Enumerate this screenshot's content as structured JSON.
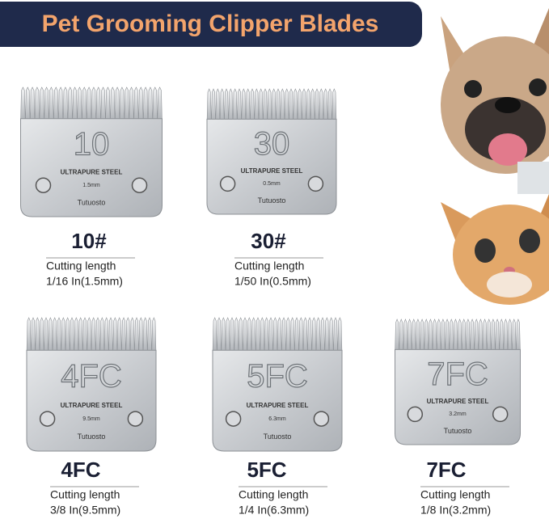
{
  "header": {
    "title": "Pet Grooming Clipper Blades"
  },
  "blades": [
    {
      "engraving": "10",
      "steel": "ULTRAPURE STEEL",
      "size": "1.5mm",
      "brand": "Tutuosto",
      "name": "10#",
      "caption": "Cutting length",
      "length": "1/16 In(1.5mm)"
    },
    {
      "engraving": "30",
      "steel": "ULTRAPURE STEEL",
      "size": "0.5mm",
      "brand": "Tutuosto",
      "name": "30#",
      "caption": "Cutting length",
      "length": "1/50 In(0.5mm)"
    },
    {
      "engraving": "4FC",
      "steel": "ULTRAPURE STEEL",
      "size": "9.5mm",
      "brand": "Tutuosto",
      "name": "4FC",
      "caption": "Cutting length",
      "length": "3/8 In(9.5mm)"
    },
    {
      "engraving": "5FC",
      "steel": "ULTRAPURE STEEL",
      "size": "6.3mm",
      "brand": "Tutuosto",
      "name": "5FC",
      "caption": "Cutting length",
      "length": "1/4 In(6.3mm)"
    },
    {
      "engraving": "7FC",
      "steel": "ULTRAPURE STEEL",
      "size": "3.2mm",
      "brand": "Tutuosto",
      "name": "7FC",
      "caption": "Cutting length",
      "length": "1/8 In(3.2mm)"
    }
  ]
}
